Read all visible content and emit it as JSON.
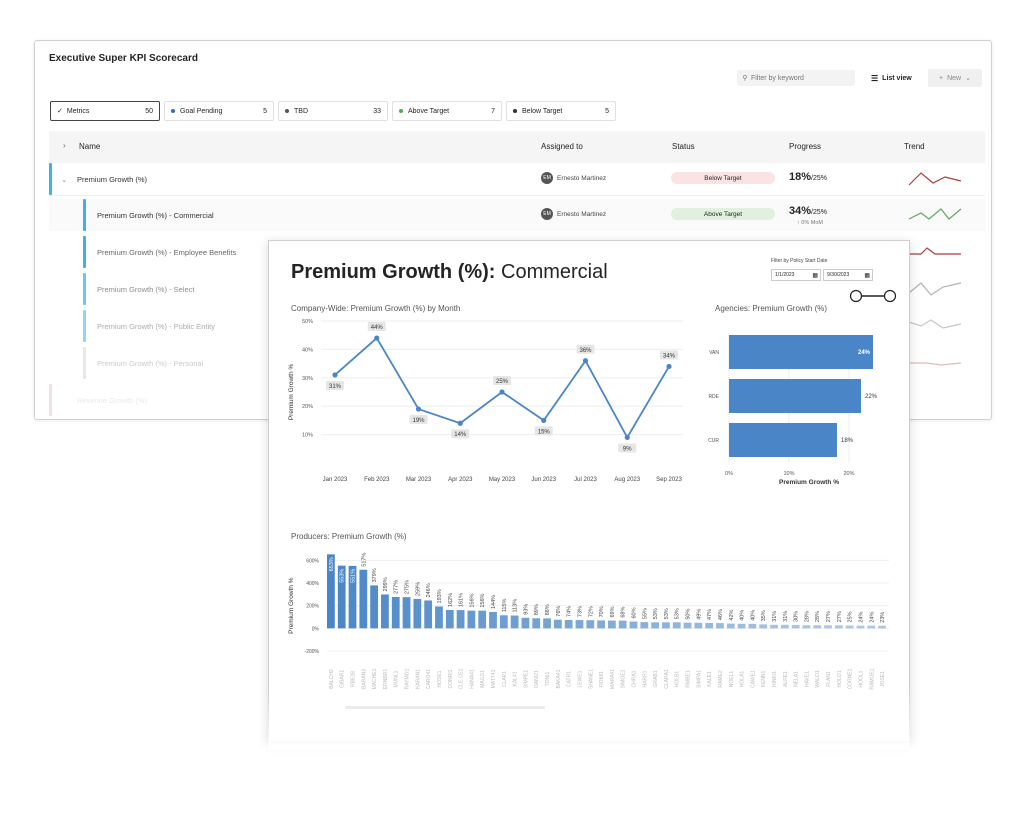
{
  "app": {
    "title": "Executive Super KPI Scorecard"
  },
  "toolbar": {
    "search_placeholder": "Filter by keyword",
    "list_view_label": "List view",
    "new_label": "New"
  },
  "chips": [
    {
      "label": "Metrics",
      "count": "50",
      "color": ""
    },
    {
      "label": "Goal Pending",
      "count": "5",
      "color": "#2f6fb5"
    },
    {
      "label": "TBD",
      "count": "33",
      "color": "#555555"
    },
    {
      "label": "Above Target",
      "count": "7",
      "color": "#4caf50"
    },
    {
      "label": "Below Target",
      "count": "5",
      "color": "#333333"
    }
  ],
  "columns": {
    "name": "Name",
    "assigned": "Assigned to",
    "status": "Status",
    "progress": "Progress",
    "trend": "Trend"
  },
  "rows": [
    {
      "name": "Premium Growth (%)",
      "assigned": "Ernesto Martinez",
      "initials": "EM",
      "status": "Below Target",
      "progress": "18%",
      "target": "/25%",
      "note": ""
    },
    {
      "name": "Premium Growth (%) - Commercial",
      "assigned": "Ernesto Martinez",
      "initials": "EM",
      "status": "Above Target",
      "progress": "34%",
      "target": "/25%",
      "note": "↑ 0% MoM"
    },
    {
      "name": "Premium Growth (%) - Employee Benefits"
    },
    {
      "name": "Premium Growth (%) - Select"
    },
    {
      "name": "Premium Growth (%) - Public Entity"
    },
    {
      "name": "Premium Growth (%) - Personal"
    },
    {
      "name": "Revenue Growth (%)"
    }
  ],
  "colors": {
    "accent": "#3ab4e8",
    "below": "#fbe3e4",
    "above": "#e2f1df",
    "line": "#4a86c7",
    "bar": "#4a86c7",
    "trend_red": "#b03a3a",
    "trend_green": "#5cab5c"
  },
  "report": {
    "title_bold": "Premium Growth (%):",
    "title_rest": " Commercial",
    "filter_label": "Filter by Policy Start Date",
    "date_from": "1/1/2023",
    "date_to": "9/30/2023"
  },
  "chart_data": [
    {
      "type": "line",
      "title": "Company-Wide: Premium Growth (%) by Month",
      "ylabel": "Premium Growth %",
      "categories": [
        "Jan 2023",
        "Feb 2023",
        "Mar 2023",
        "Apr 2023",
        "May 2023",
        "Jun 2023",
        "Jul 2023",
        "Aug 2023",
        "Sep 2023"
      ],
      "values": [
        31,
        44,
        19,
        14,
        25,
        15,
        36,
        9,
        34
      ],
      "labels": [
        "31%",
        "44%",
        "19%",
        "14%",
        "25%",
        "15%",
        "36%",
        "9%",
        "34%"
      ],
      "yticks": [
        "10%",
        "20%",
        "30%",
        "40%",
        "50%"
      ],
      "ylim": [
        0,
        50
      ]
    },
    {
      "type": "bar",
      "orientation": "horizontal",
      "title": "Agencies: Premium Growth (%)",
      "xlabel": "Premium Growth %",
      "categories": [
        "VAN",
        "RDE",
        "CUR"
      ],
      "values": [
        24,
        22,
        18
      ],
      "labels": [
        "24%",
        "22%",
        "18%"
      ],
      "xticks": [
        "0%",
        "10%",
        "20%"
      ],
      "xlim": [
        0,
        25
      ]
    },
    {
      "type": "bar",
      "title": "Producers: Premium Growth (%)",
      "ylabel": "Premium Growth %",
      "yticks": [
        "600%",
        "400%",
        "200%",
        "0%",
        "-200%"
      ],
      "ylim": [
        -200,
        700
      ],
      "labels": [
        "653%",
        "553%",
        "551%",
        "517%",
        "379%",
        "299%",
        "277%",
        "275%",
        "259%",
        "246%",
        "193%",
        "162%",
        "161%",
        "156%",
        "156%",
        "144%",
        "115%",
        "113%",
        "93%",
        "89%",
        "88%",
        "76%",
        "74%",
        "73%",
        "72%",
        "70%",
        "69%",
        "68%",
        "60%",
        "55%",
        "53%",
        "53%",
        "53%",
        "50%",
        "49%",
        "47%",
        "46%",
        "42%",
        "40%",
        "40%",
        "35%",
        "31%",
        "31%",
        "30%",
        "28%",
        "28%",
        "27%",
        "27%",
        "25%",
        "24%",
        "24%",
        "23%"
      ],
      "values": [
        653,
        553,
        551,
        517,
        379,
        299,
        277,
        275,
        259,
        246,
        193,
        162,
        161,
        156,
        156,
        144,
        115,
        113,
        93,
        89,
        88,
        76,
        74,
        73,
        72,
        70,
        69,
        68,
        60,
        55,
        53,
        53,
        53,
        50,
        49,
        47,
        46,
        42,
        40,
        40,
        35,
        31,
        31,
        30,
        28,
        28,
        27,
        27,
        25,
        24,
        24,
        23
      ],
      "categories": [
        "BALCH2",
        "GIBAR1",
        "RBE38",
        "BARAN3",
        "MACHE1",
        "ERNBR1",
        "MUNL1",
        "RAYMO1",
        "KARAN1",
        "CARO41",
        "HOSE1",
        "CONRI1",
        "CLE.CE1",
        "HANA41",
        "MAGS1",
        "MATT41",
        "CLAR1",
        "KAL41",
        "SIMPE1",
        "DANI21",
        "TONI1",
        "BAKA41",
        "CATR1",
        "LEWE1",
        "SHANE1",
        "ROMI1",
        "MARA41",
        "SIMOE1",
        "CHRA1",
        "HARR1",
        "GRAB1",
        "CLARA1",
        "HOLB1",
        "RMBE1",
        "SIMPA1",
        "KALE1",
        "RAME2",
        "NOEL1",
        "HOLA1",
        "CAWE1",
        "KENN1",
        "HINKI1",
        "ALRE1",
        "NELA1",
        "HAVE1",
        "WALO1",
        "FLAN1",
        "HOLO1",
        "CORNE1",
        "HOOL1",
        "RAMOE1",
        "JOSE1"
      ]
    }
  ]
}
